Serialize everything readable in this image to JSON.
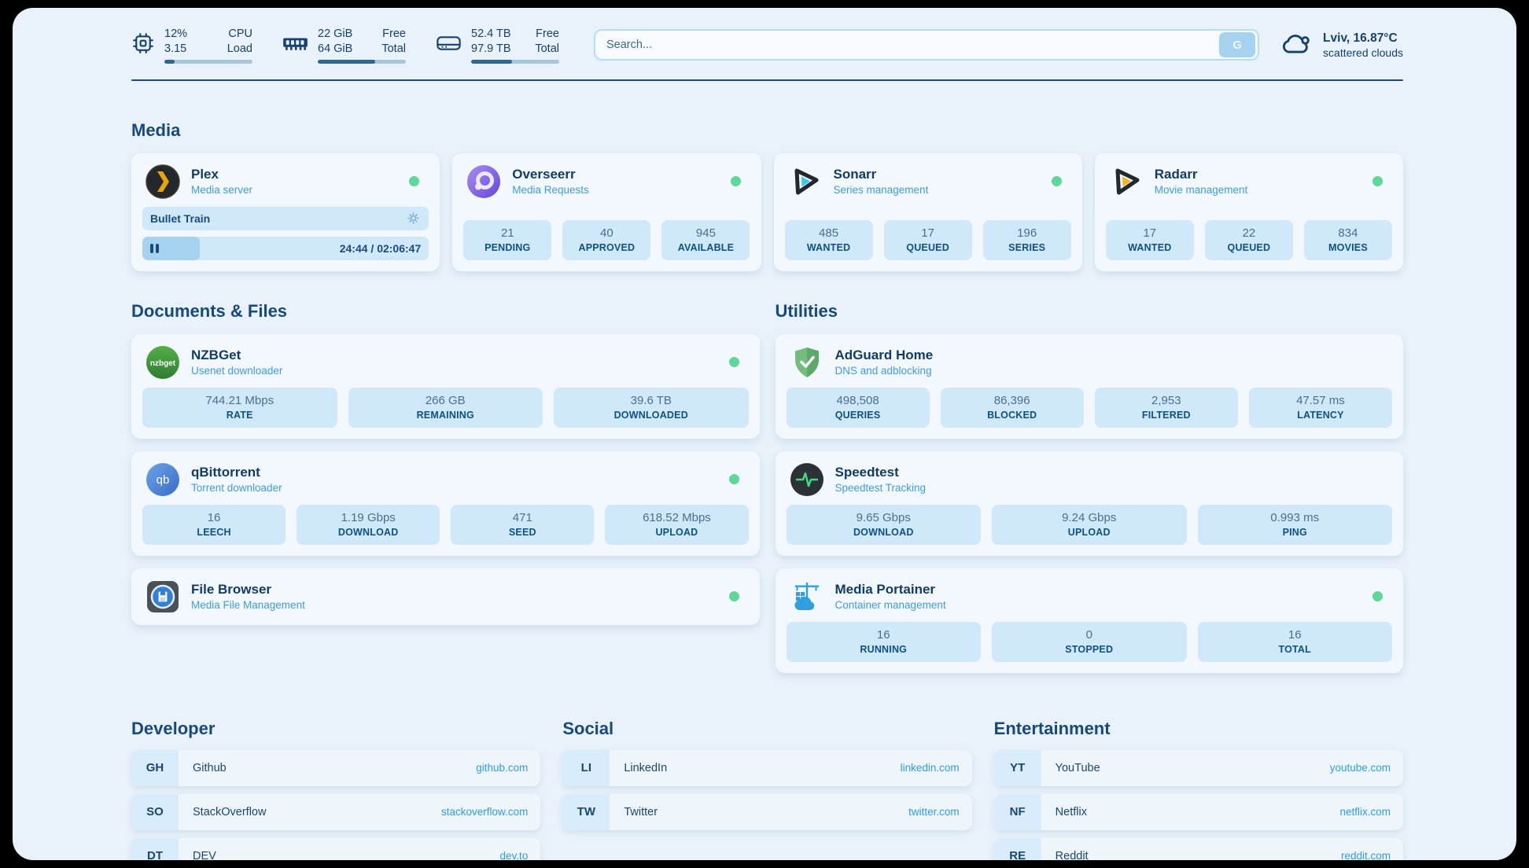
{
  "colors": {
    "online_green": "#5fd79b",
    "accent_blue": "#2e9ce8",
    "navy_text": "#16406e",
    "stat_label_blue": "#0d5186",
    "stat_box_bg": "#cfe8fa"
  },
  "header": {
    "system": [
      {
        "icon": "cpu-icon",
        "values": [
          "12%",
          "3.15"
        ],
        "labels": [
          "CPU",
          "Load"
        ],
        "progress_pct": 12
      },
      {
        "icon": "ram-icon",
        "values": [
          "22 GiB",
          "64 GiB"
        ],
        "labels": [
          "Free",
          "Total"
        ],
        "progress_pct": 65
      },
      {
        "icon": "disk-icon",
        "values": [
          "52.4 TB",
          "97.9 TB"
        ],
        "labels": [
          "Free",
          "Total"
        ],
        "progress_pct": 46
      }
    ],
    "search": {
      "placeholder": "Search...",
      "button_label": "G"
    },
    "weather": {
      "icon": "cloud-icon",
      "location": "Lviv, 16.87°C",
      "condition": "scattered clouds"
    }
  },
  "media": {
    "title": "Media",
    "plex": {
      "name": "Plex",
      "subtitle": "Media server",
      "online": true,
      "now_playing": {
        "title": "Bullet Train",
        "time": "24:44 / 02:06:47",
        "progress_pct": 20
      }
    },
    "overseerr": {
      "name": "Overseerr",
      "subtitle": "Media Requests",
      "online": true,
      "stats": [
        {
          "value": "21",
          "label": "PENDING"
        },
        {
          "value": "40",
          "label": "APPROVED"
        },
        {
          "value": "945",
          "label": "AVAILABLE"
        }
      ]
    },
    "sonarr": {
      "name": "Sonarr",
      "subtitle": "Series management",
      "online": true,
      "stats": [
        {
          "value": "485",
          "label": "WANTED"
        },
        {
          "value": "17",
          "label": "QUEUED"
        },
        {
          "value": "196",
          "label": "SERIES"
        }
      ]
    },
    "radarr": {
      "name": "Radarr",
      "subtitle": "Movie management",
      "online": true,
      "stats": [
        {
          "value": "17",
          "label": "WANTED"
        },
        {
          "value": "22",
          "label": "QUEUED"
        },
        {
          "value": "834",
          "label": "MOVIES"
        }
      ]
    }
  },
  "documents": {
    "title": "Documents & Files",
    "nzbget": {
      "name": "NZBGet",
      "subtitle": "Usenet downloader",
      "online": true,
      "stats": [
        {
          "value": "744.21 Mbps",
          "label": "RATE"
        },
        {
          "value": "266 GB",
          "label": "REMAINING"
        },
        {
          "value": "39.6 TB",
          "label": "DOWNLOADED"
        }
      ]
    },
    "qbittorrent": {
      "name": "qBittorrent",
      "subtitle": "Torrent downloader",
      "online": true,
      "stats": [
        {
          "value": "16",
          "label": "LEECH"
        },
        {
          "value": "1.19 Gbps",
          "label": "DOWNLOAD"
        },
        {
          "value": "471",
          "label": "SEED"
        },
        {
          "value": "618.52 Mbps",
          "label": "UPLOAD"
        }
      ]
    },
    "filebrowser": {
      "name": "File Browser",
      "subtitle": "Media File Management",
      "online": true
    }
  },
  "utilities": {
    "title": "Utilities",
    "adguard": {
      "name": "AdGuard Home",
      "subtitle": "DNS and adblocking",
      "stats": [
        {
          "value": "498,508",
          "label": "QUERIES"
        },
        {
          "value": "86,396",
          "label": "BLOCKED"
        },
        {
          "value": "2,953",
          "label": "FILTERED"
        },
        {
          "value": "47.57 ms",
          "label": "LATENCY"
        }
      ]
    },
    "speedtest": {
      "name": "Speedtest",
      "subtitle": "Speedtest Tracking",
      "stats": [
        {
          "value": "9.65 Gbps",
          "label": "DOWNLOAD"
        },
        {
          "value": "9.24 Gbps",
          "label": "UPLOAD"
        },
        {
          "value": "0.993 ms",
          "label": "PING"
        }
      ]
    },
    "portainer": {
      "name": "Media Portainer",
      "subtitle": "Container management",
      "online": true,
      "stats": [
        {
          "value": "16",
          "label": "RUNNING"
        },
        {
          "value": "0",
          "label": "STOPPED"
        },
        {
          "value": "16",
          "label": "TOTAL"
        }
      ]
    }
  },
  "link_sections": [
    {
      "title": "Developer",
      "items": [
        {
          "abbr": "GH",
          "name": "Github",
          "url": "github.com"
        },
        {
          "abbr": "SO",
          "name": "StackOverflow",
          "url": "stackoverflow.com"
        },
        {
          "abbr": "DT",
          "name": "DEV",
          "url": "dev.to"
        }
      ]
    },
    {
      "title": "Social",
      "items": [
        {
          "abbr": "LI",
          "name": "LinkedIn",
          "url": "linkedin.com"
        },
        {
          "abbr": "TW",
          "name": "Twitter",
          "url": "twitter.com"
        }
      ]
    },
    {
      "title": "Entertainment",
      "items": [
        {
          "abbr": "YT",
          "name": "YouTube",
          "url": "youtube.com"
        },
        {
          "abbr": "NF",
          "name": "Netflix",
          "url": "netflix.com"
        },
        {
          "abbr": "RE",
          "name": "Reddit",
          "url": "reddit.com"
        }
      ]
    }
  ]
}
